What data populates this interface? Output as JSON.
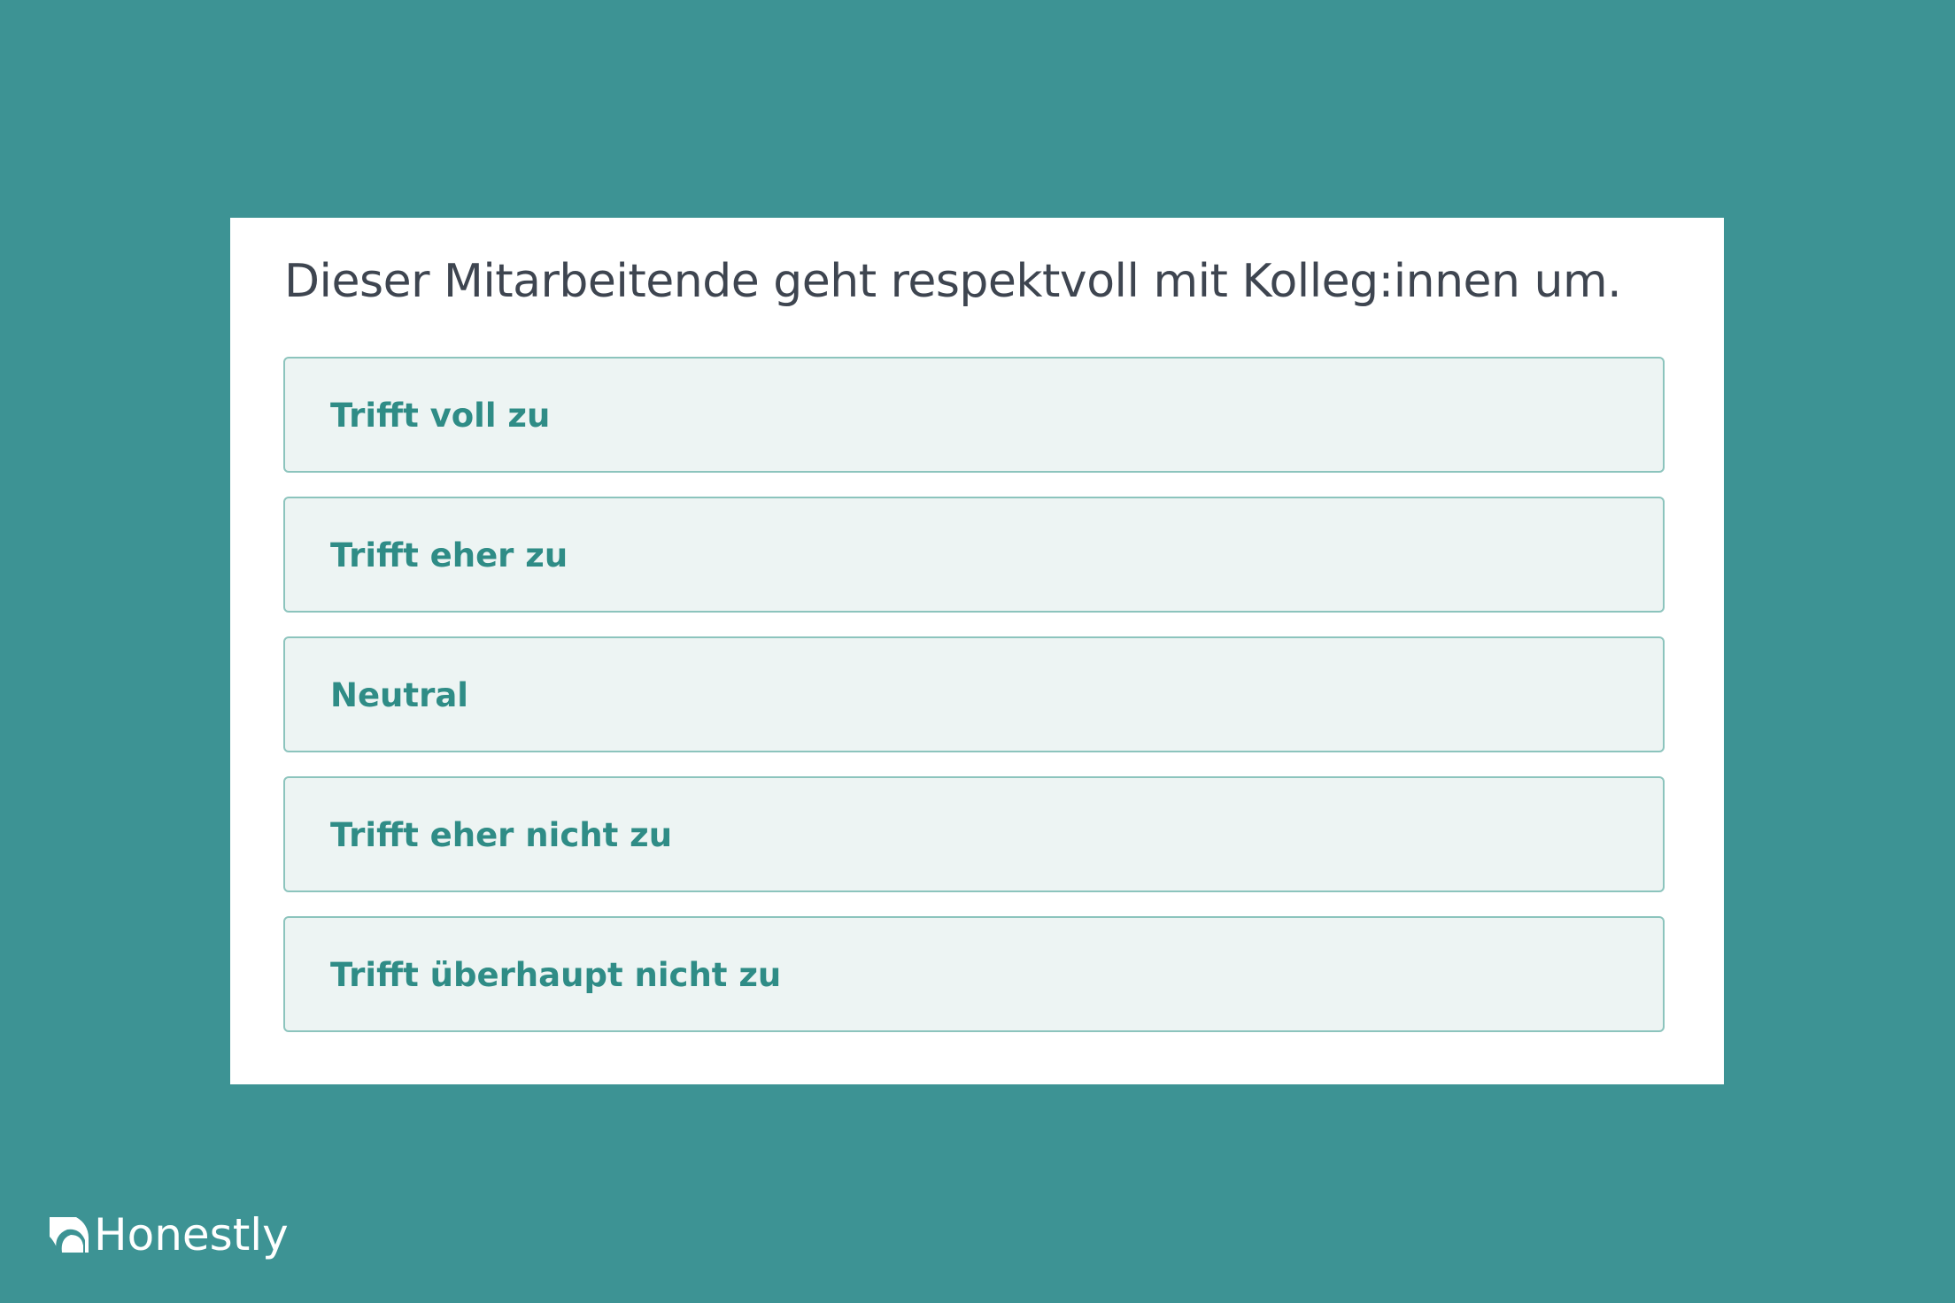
{
  "question": {
    "title": "Dieser Mitarbeitende geht respektvoll mit Kolleg:innen um.",
    "options": [
      {
        "label": "Trifft voll zu"
      },
      {
        "label": "Trifft eher zu"
      },
      {
        "label": "Neutral"
      },
      {
        "label": "Trifft eher nicht zu"
      },
      {
        "label": "Trifft überhaupt nicht zu"
      }
    ]
  },
  "brand": {
    "name": "Honestly",
    "icon": "honestly-logo-icon"
  },
  "colors": {
    "background": "#3d9394",
    "accent": "#2f8c86",
    "option_bg": "#edf4f3",
    "option_border": "#8cc4bd"
  }
}
